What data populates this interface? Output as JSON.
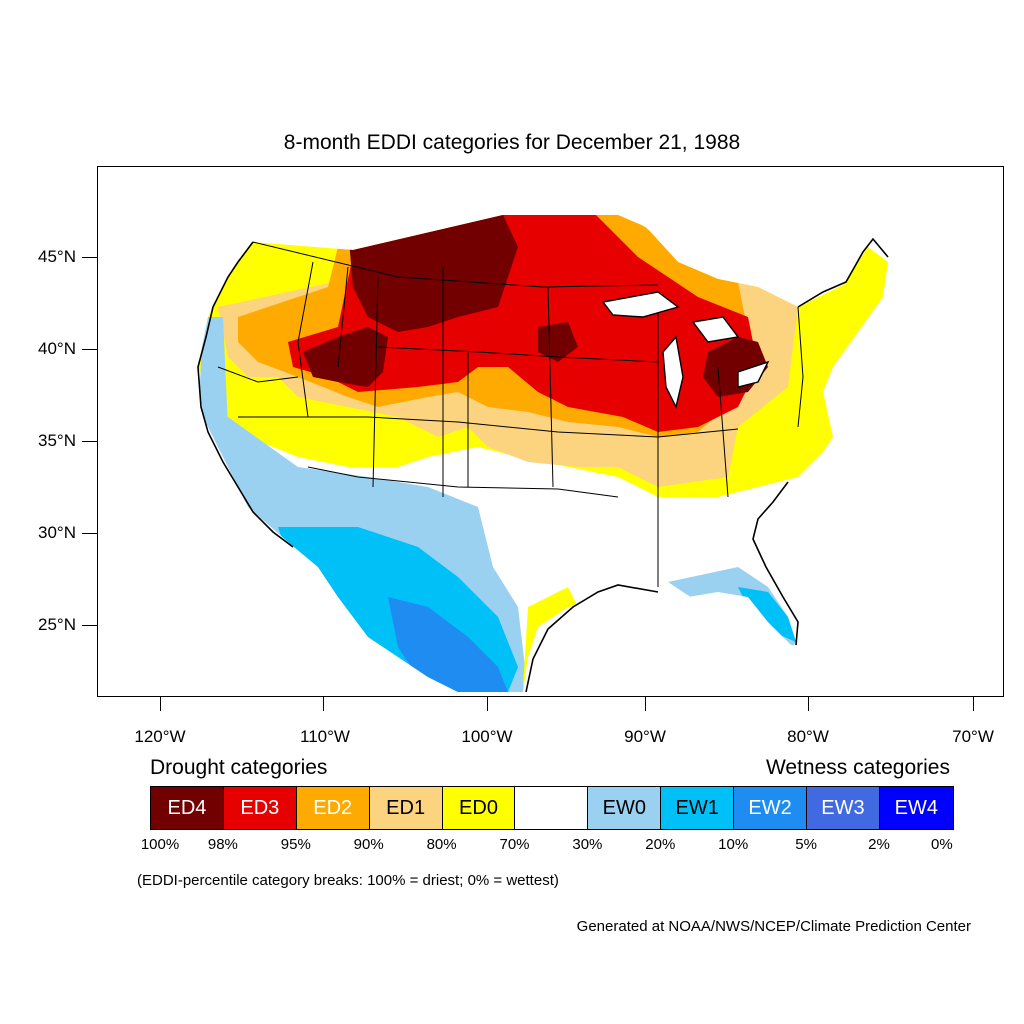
{
  "title": "8-month EDDI categories for December 21, 1988",
  "map": {
    "projection": "Lambert conformal conic, contiguous United States",
    "lat_labels": [
      "45°N",
      "40°N",
      "35°N",
      "30°N",
      "25°N"
    ],
    "lon_labels": [
      "120°W",
      "110°W",
      "100°W",
      "90°W",
      "80°W",
      "70°W"
    ]
  },
  "legend": {
    "drought_heading": "Drought categories",
    "wetness_heading": "Wetness categories",
    "categories": [
      {
        "label": "ED4",
        "color": "#730000",
        "text_color": "#ffffff"
      },
      {
        "label": "ED3",
        "color": "#e60000",
        "text_color": "#ffffff"
      },
      {
        "label": "ED2",
        "color": "#ffaa00",
        "text_color": "#ffffff"
      },
      {
        "label": "ED1",
        "color": "#fcd37f",
        "text_color": "#000000"
      },
      {
        "label": "ED0",
        "color": "#ffff00",
        "text_color": "#000000"
      },
      {
        "label": "",
        "color": "#ffffff",
        "text_color": "#000000"
      },
      {
        "label": "EW0",
        "color": "#9bd1f0",
        "text_color": "#000000"
      },
      {
        "label": "EW1",
        "color": "#00c0f8",
        "text_color": "#000000"
      },
      {
        "label": "EW2",
        "color": "#1e8cf0",
        "text_color": "#ffffff"
      },
      {
        "label": "EW3",
        "color": "#4169e1",
        "text_color": "#ffffff"
      },
      {
        "label": "EW4",
        "color": "#0000ff",
        "text_color": "#ffffff"
      }
    ],
    "breaks": [
      "100%",
      "98%",
      "95%",
      "90%",
      "80%",
      "70%",
      "30%",
      "20%",
      "10%",
      "5%",
      "2%",
      "0%"
    ]
  },
  "note": "(EDDI-percentile category breaks: 100% = driest; 0% = wettest)",
  "credit": "Generated at NOAA/NWS/NCEP/Climate Prediction Center"
}
